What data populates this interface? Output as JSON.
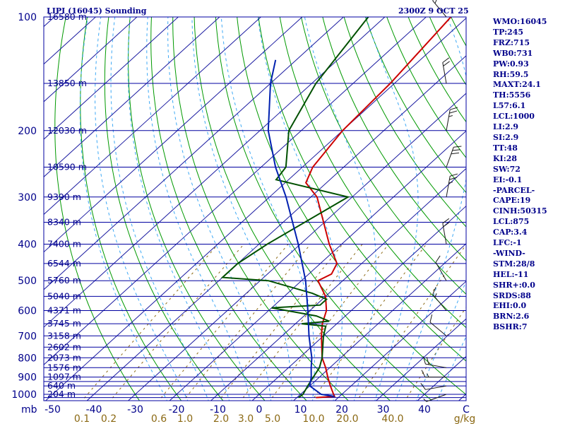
{
  "header": {
    "station_title": "LIPI (16045) Sounding",
    "time_title": "2300Z  9 OCT 25"
  },
  "colors": {
    "frame": "#0000a0",
    "isotherm": "#1a1aa0",
    "dry_adiabat": "#009900",
    "moist_adiabat": "#3fa9f5",
    "mixing_ratio": "#8b6914",
    "temperature": "#cc0000",
    "dewpoint": "#005000",
    "parcel": "#0020b0",
    "wind": "#1a1a1a"
  },
  "side_panel": [
    "WMO:16045",
    "TP:245",
    "FRZ:715",
    "WB0:731",
    "PW:0.93",
    "RH:59.5",
    "MAXT:24.1",
    "TH:5556",
    "L57:6.1",
    "LCL:1000",
    "LI:2.9",
    "SI:2.9",
    "TT:48",
    "KI:28",
    "SW:72",
    "EI:-0.1",
    "-PARCEL-",
    "CAPE:19",
    "CINH:50315",
    "LCL:875",
    "CAP:3.4",
    "LFC:-1",
    "-WIND-",
    "STM:28/8",
    "HEL:-11",
    "SHR+:0.0",
    "SRDS:88",
    "EHI:0.0",
    "BRN:2.6",
    "BSHR:7"
  ],
  "chart_data": {
    "type": "line",
    "title": "LIPI (16045) Sounding",
    "subtitle": "2300Z  9 OCT 25",
    "xlabel": "",
    "ylabel": "mb",
    "x_units": "g/kg",
    "pressure_ticks": [
      "100",
      "200",
      "300",
      "400",
      "500",
      "600",
      "700",
      "800",
      "900",
      "1000"
    ],
    "temperature_ticks": [
      "-50",
      "-40",
      "-30",
      "-20",
      "-10",
      "0",
      "10",
      "20",
      "30",
      "40",
      "C"
    ],
    "mixing_ratio_labels": [
      "0.1",
      "0.2",
      "0.6",
      "1.0",
      "2.0",
      "3.0",
      "5.0",
      "10.0",
      "20.0",
      "40.0",
      "g/kg"
    ],
    "height_labels": [
      {
        "p": 100,
        "label": "16580 m"
      },
      {
        "p": 150,
        "label": "13850 m"
      },
      {
        "p": 200,
        "label": "12030 m"
      },
      {
        "p": 250,
        "label": "10590 m"
      },
      {
        "p": 300,
        "label": "9390 m"
      },
      {
        "p": 350,
        "label": "8340 m"
      },
      {
        "p": 400,
        "label": "7400 m"
      },
      {
        "p": 450,
        "label": "6544 m"
      },
      {
        "p": 500,
        "label": "5760 m"
      },
      {
        "p": 550,
        "label": "5040 m"
      },
      {
        "p": 600,
        "label": "4371 m"
      },
      {
        "p": 650,
        "label": "3745 m"
      },
      {
        "p": 700,
        "label": "3158 m"
      },
      {
        "p": 750,
        "label": "2602 m"
      },
      {
        "p": 800,
        "label": "2073 m"
      },
      {
        "p": 850,
        "label": "1576 m"
      },
      {
        "p": 900,
        "label": "1097 m"
      },
      {
        "p": 950,
        "label": "640 m"
      },
      {
        "p": 1000,
        "label": "204 m"
      }
    ],
    "isobars": [
      100,
      150,
      200,
      250,
      300,
      350,
      400,
      450,
      500,
      550,
      600,
      650,
      700,
      750,
      800,
      850,
      900,
      925,
      950,
      1000,
      1020
    ],
    "mixing_ratio_lines": [
      0.1,
      0.2,
      0.6,
      1,
      2,
      3,
      5,
      10,
      20,
      40
    ],
    "series": [
      {
        "name": "Temperature",
        "color": "#cc0000",
        "points": [
          {
            "p": 1020,
            "t": 14.6
          },
          {
            "p": 1013,
            "t": 18.8
          },
          {
            "p": 1000,
            "t": 18.0
          },
          {
            "p": 950,
            "t": 15.0
          },
          {
            "p": 900,
            "t": 12.0
          },
          {
            "p": 850,
            "t": 9.0
          },
          {
            "p": 800,
            "t": 5.5
          },
          {
            "p": 700,
            "t": -0.5
          },
          {
            "p": 650,
            "t": -3.5
          },
          {
            "p": 600,
            "t": -6.0
          },
          {
            "p": 550,
            "t": -10.0
          },
          {
            "p": 500,
            "t": -16.0
          },
          {
            "p": 480,
            "t": -14.5
          },
          {
            "p": 450,
            "t": -16.0
          },
          {
            "p": 400,
            "t": -23.0
          },
          {
            "p": 300,
            "t": -38.5
          },
          {
            "p": 275,
            "t": -45.0
          },
          {
            "p": 250,
            "t": -47.5
          },
          {
            "p": 200,
            "t": -50.0
          },
          {
            "p": 150,
            "t": -51.0
          },
          {
            "p": 100,
            "t": -54.0
          }
        ]
      },
      {
        "name": "Dewpoint",
        "color": "#005000",
        "points": [
          {
            "p": 1020,
            "t": 10.4
          },
          {
            "p": 1000,
            "t": 10.6
          },
          {
            "p": 950,
            "t": 9.5
          },
          {
            "p": 900,
            "t": 8.5
          },
          {
            "p": 850,
            "t": 7.5
          },
          {
            "p": 800,
            "t": 5.5
          },
          {
            "p": 700,
            "t": 0.0
          },
          {
            "p": 660,
            "t": -2.0
          },
          {
            "p": 650,
            "t": -8.5
          },
          {
            "p": 640,
            "t": -2.5
          },
          {
            "p": 620,
            "t": -7.0
          },
          {
            "p": 590,
            "t": -20.0
          },
          {
            "p": 580,
            "t": -9.0
          },
          {
            "p": 560,
            "t": -9.0
          },
          {
            "p": 540,
            "t": -14.0
          },
          {
            "p": 500,
            "t": -28.0
          },
          {
            "p": 490,
            "t": -40.0
          },
          {
            "p": 450,
            "t": -40.0
          },
          {
            "p": 400,
            "t": -38.0
          },
          {
            "p": 300,
            "t": -31.0
          },
          {
            "p": 270,
            "t": -53.0
          },
          {
            "p": 250,
            "t": -54.0
          },
          {
            "p": 200,
            "t": -63.0
          },
          {
            "p": 150,
            "t": -69.0
          },
          {
            "p": 100,
            "t": -74.0
          }
        ]
      },
      {
        "name": "Parcel",
        "color": "#0020b0",
        "points": [
          {
            "p": 1013,
            "t": 18.8
          },
          {
            "p": 1000,
            "t": 15.0
          },
          {
            "p": 950,
            "t": 10.0
          },
          {
            "p": 900,
            "t": 8.0
          },
          {
            "p": 850,
            "t": 5.5
          },
          {
            "p": 800,
            "t": 3.0
          },
          {
            "p": 700,
            "t": -3.5
          },
          {
            "p": 600,
            "t": -10.5
          },
          {
            "p": 500,
            "t": -19.0
          },
          {
            "p": 400,
            "t": -30.5
          },
          {
            "p": 300,
            "t": -46.0
          },
          {
            "p": 250,
            "t": -56.5
          },
          {
            "p": 200,
            "t": -68.0
          },
          {
            "p": 150,
            "t": -80.0
          },
          {
            "p": 130,
            "t": -85.0
          }
        ]
      }
    ],
    "wind_barbs": [
      {
        "p": 1000,
        "dir": 250,
        "spd": 5
      },
      {
        "p": 950,
        "dir": 260,
        "spd": 10
      },
      {
        "p": 900,
        "dir": 270,
        "spd": 15
      },
      {
        "p": 850,
        "dir": 280,
        "spd": 20
      },
      {
        "p": 700,
        "dir": 310,
        "spd": 10
      },
      {
        "p": 600,
        "dir": 320,
        "spd": 15
      },
      {
        "p": 500,
        "dir": 330,
        "spd": 10
      },
      {
        "p": 400,
        "dir": 350,
        "spd": 20
      },
      {
        "p": 300,
        "dir": 10,
        "spd": 25
      },
      {
        "p": 250,
        "dir": 20,
        "spd": 30
      },
      {
        "p": 200,
        "dir": 10,
        "spd": 25
      },
      {
        "p": 150,
        "dir": 350,
        "spd": 20
      },
      {
        "p": 100,
        "dir": 320,
        "spd": 15
      }
    ]
  }
}
